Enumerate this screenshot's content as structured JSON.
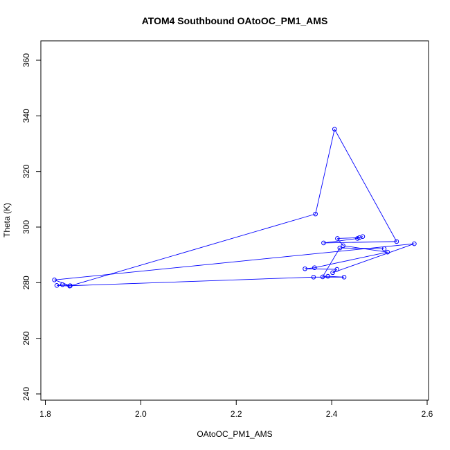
{
  "chart_data": {
    "type": "line",
    "title": "ATOM4 Southbound OAtoOC_PM1_AMS",
    "xlabel": "OAtoOC_PM1_AMS",
    "ylabel": "Theta (K)",
    "xlim": [
      1.8,
      2.6
    ],
    "ylim": [
      240,
      360
    ],
    "x_ticks": [
      "1.8",
      "2.0",
      "2.2",
      "2.4",
      "2.6"
    ],
    "y_ticks": [
      "240",
      "260",
      "280",
      "300",
      "320",
      "340",
      "360"
    ],
    "grid": false,
    "legend": "none",
    "series": [
      {
        "color": "#0000ff",
        "marker": "open-circle",
        "points": [
          {
            "x": 1.852,
            "y": 278.9
          },
          {
            "x": 1.836,
            "y": 279.3
          },
          {
            "x": 1.824,
            "y": 279.0
          },
          {
            "x": 1.851,
            "y": 278.8
          },
          {
            "x": 2.366,
            "y": 304.7
          },
          {
            "x": 2.406,
            "y": 335.2
          },
          {
            "x": 2.536,
            "y": 294.8
          },
          {
            "x": 2.383,
            "y": 294.3
          },
          {
            "x": 2.454,
            "y": 295.9
          },
          {
            "x": 2.465,
            "y": 296.6
          },
          {
            "x": 2.458,
            "y": 296.2
          },
          {
            "x": 2.412,
            "y": 295.9
          },
          {
            "x": 2.424,
            "y": 293.3
          },
          {
            "x": 2.517,
            "y": 291.0
          },
          {
            "x": 2.364,
            "y": 285.4
          },
          {
            "x": 2.344,
            "y": 285.0
          },
          {
            "x": 2.411,
            "y": 284.8
          },
          {
            "x": 2.402,
            "y": 283.6
          },
          {
            "x": 2.573,
            "y": 294.0
          },
          {
            "x": 1.819,
            "y": 281.0
          },
          {
            "x": 1.852,
            "y": 278.9
          },
          {
            "x": 1.852,
            "y": 278.9
          },
          {
            "x": 2.362,
            "y": 282.0
          },
          {
            "x": 2.426,
            "y": 282.0
          },
          {
            "x": 2.392,
            "y": 282.3
          },
          {
            "x": 2.381,
            "y": 282.1
          },
          {
            "x": 2.417,
            "y": 292.5
          },
          {
            "x": 2.51,
            "y": 292.2
          }
        ]
      }
    ]
  }
}
